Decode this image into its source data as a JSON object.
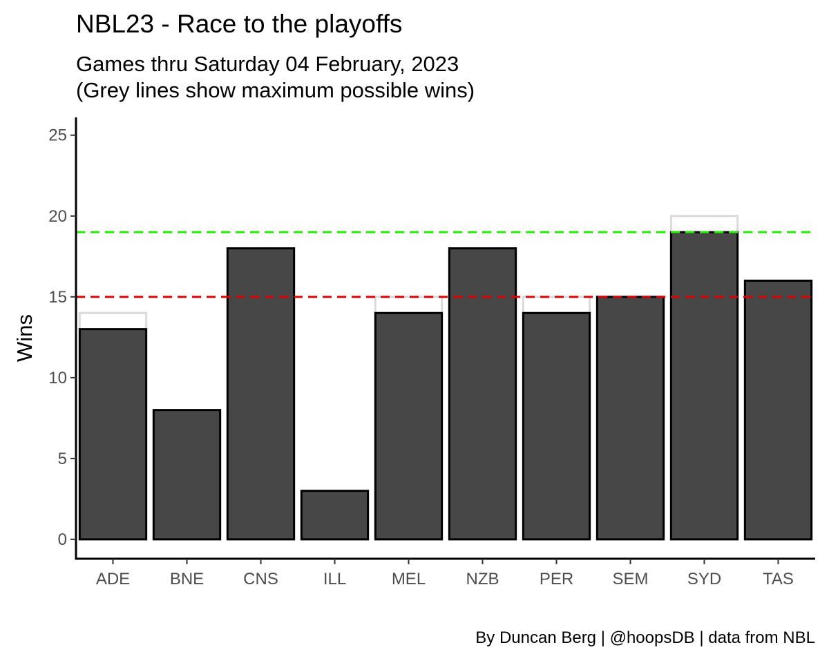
{
  "chart_data": {
    "type": "bar",
    "title": "NBL23 - Race to the playoffs",
    "subtitle_lines": [
      "Games thru Saturday 04 February, 2023",
      "(Grey lines show maximum possible wins)"
    ],
    "caption": "By Duncan Berg | @hoopsDB | data from NBL",
    "xlabel": "",
    "ylabel": "Wins",
    "categories": [
      "ADE",
      "BNE",
      "CNS",
      "ILL",
      "MEL",
      "NZB",
      "PER",
      "SEM",
      "SYD",
      "TAS"
    ],
    "series": [
      {
        "values": [
          13,
          8,
          18,
          3,
          14,
          18,
          14,
          15,
          19,
          16
        ]
      },
      {
        "values": [
          14,
          8,
          18,
          3,
          15,
          18,
          15,
          15,
          20,
          16
        ]
      }
    ],
    "reference_lines": [
      {
        "y": 19,
        "color": "#22ee00",
        "style": "dashed"
      },
      {
        "y": 15,
        "color": "#dd0000",
        "style": "dashed"
      }
    ],
    "yticks": [
      0,
      5,
      10,
      15,
      20,
      25
    ],
    "ylim": [
      -1.2,
      26.1
    ],
    "grid": false,
    "colors": {
      "bar_fill": "#474747",
      "bar_outline": "#000000",
      "max_outline": "#dadada"
    }
  }
}
